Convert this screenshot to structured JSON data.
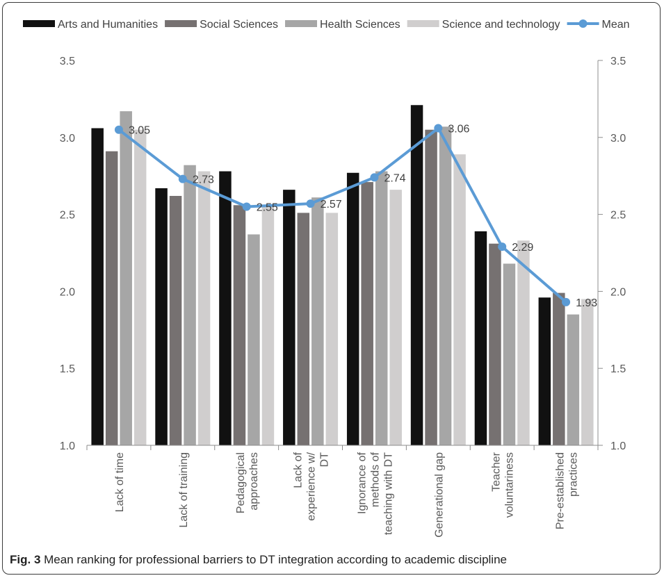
{
  "caption": {
    "label": "Fig. 3",
    "text": "Mean ranking for professional barriers to DT integration according to academic discipline"
  },
  "chart_data": {
    "type": "bar",
    "categories": [
      "Lack of time",
      "Lack of training",
      "Pedagogical approaches",
      "Lack of experience w/ DT",
      "Ignorance of methods of teaching with DT",
      "Generational gap",
      "Teacher voluntariness",
      "Pre-established practices"
    ],
    "category_lines": [
      [
        "Lack of time"
      ],
      [
        "Lack of training"
      ],
      [
        "Pedagogical",
        "approaches"
      ],
      [
        "Lack of",
        "experience w/",
        "DT"
      ],
      [
        "Ignorance of",
        "methods of",
        "teaching with DT"
      ],
      [
        "Generational gap"
      ],
      [
        "Teacher",
        "voluntariness"
      ],
      [
        "Pre-established",
        "practices"
      ]
    ],
    "series": [
      {
        "name": "Arts and Humanities",
        "color": "#111111",
        "values": [
          3.06,
          2.67,
          2.78,
          2.66,
          2.77,
          3.21,
          2.39,
          1.96
        ]
      },
      {
        "name": "Social Sciences",
        "color": "#767171",
        "values": [
          2.91,
          2.62,
          2.56,
          2.51,
          2.71,
          3.05,
          2.31,
          1.99
        ]
      },
      {
        "name": "Health Sciences",
        "color": "#a6a6a6",
        "values": [
          3.17,
          2.82,
          2.37,
          2.61,
          2.78,
          3.07,
          2.18,
          1.85
        ]
      },
      {
        "name": "Science and technology",
        "color": "#d0cece",
        "values": [
          3.05,
          2.78,
          2.55,
          2.51,
          2.66,
          2.89,
          2.33,
          1.95
        ]
      }
    ],
    "line_series": {
      "name": "Mean",
      "color": "#5b9bd5",
      "values": [
        3.05,
        2.73,
        2.55,
        2.57,
        2.74,
        3.06,
        2.29,
        1.93
      ],
      "labels": [
        "3.05",
        "2.73",
        "2.55",
        "2.57",
        "2.74",
        "3.06",
        "2.29",
        "1.93"
      ]
    },
    "ylim": [
      1.0,
      3.5
    ],
    "yticks": [
      "1.0",
      "1.5",
      "2.0",
      "2.5",
      "3.0",
      "3.5"
    ],
    "ytick_values": [
      1.0,
      1.5,
      2.0,
      2.5,
      3.0,
      3.5
    ],
    "secondary_axis": true,
    "grid": false,
    "legend_position": "top"
  }
}
